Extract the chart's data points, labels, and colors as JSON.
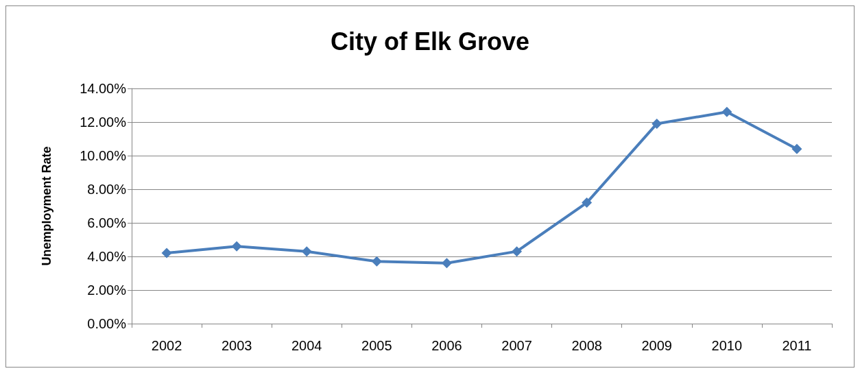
{
  "chart_data": {
    "type": "line",
    "title": "City of Elk Grove",
    "ylabel": "Unemployment Rate",
    "categories": [
      "2002",
      "2003",
      "2004",
      "2005",
      "2006",
      "2007",
      "2008",
      "2009",
      "2010",
      "2011"
    ],
    "series": [
      {
        "color": "#4a7ebb",
        "values": [
          4.2,
          4.6,
          4.3,
          3.7,
          3.6,
          4.3,
          7.2,
          11.9,
          12.6,
          10.4
        ]
      }
    ],
    "ylim": [
      0,
      14
    ],
    "yticks": [
      {
        "value": 0,
        "label": "0.00%"
      },
      {
        "value": 2,
        "label": "2.00%"
      },
      {
        "value": 4,
        "label": "4.00%"
      },
      {
        "value": 6,
        "label": "6.00%"
      },
      {
        "value": 8,
        "label": "8.00%"
      },
      {
        "value": 10,
        "label": "10.00%"
      },
      {
        "value": 12,
        "label": "12.00%"
      },
      {
        "value": 14,
        "label": "14.00%"
      }
    ],
    "grid": "y",
    "marker": "diamond",
    "line_style": "solid"
  }
}
